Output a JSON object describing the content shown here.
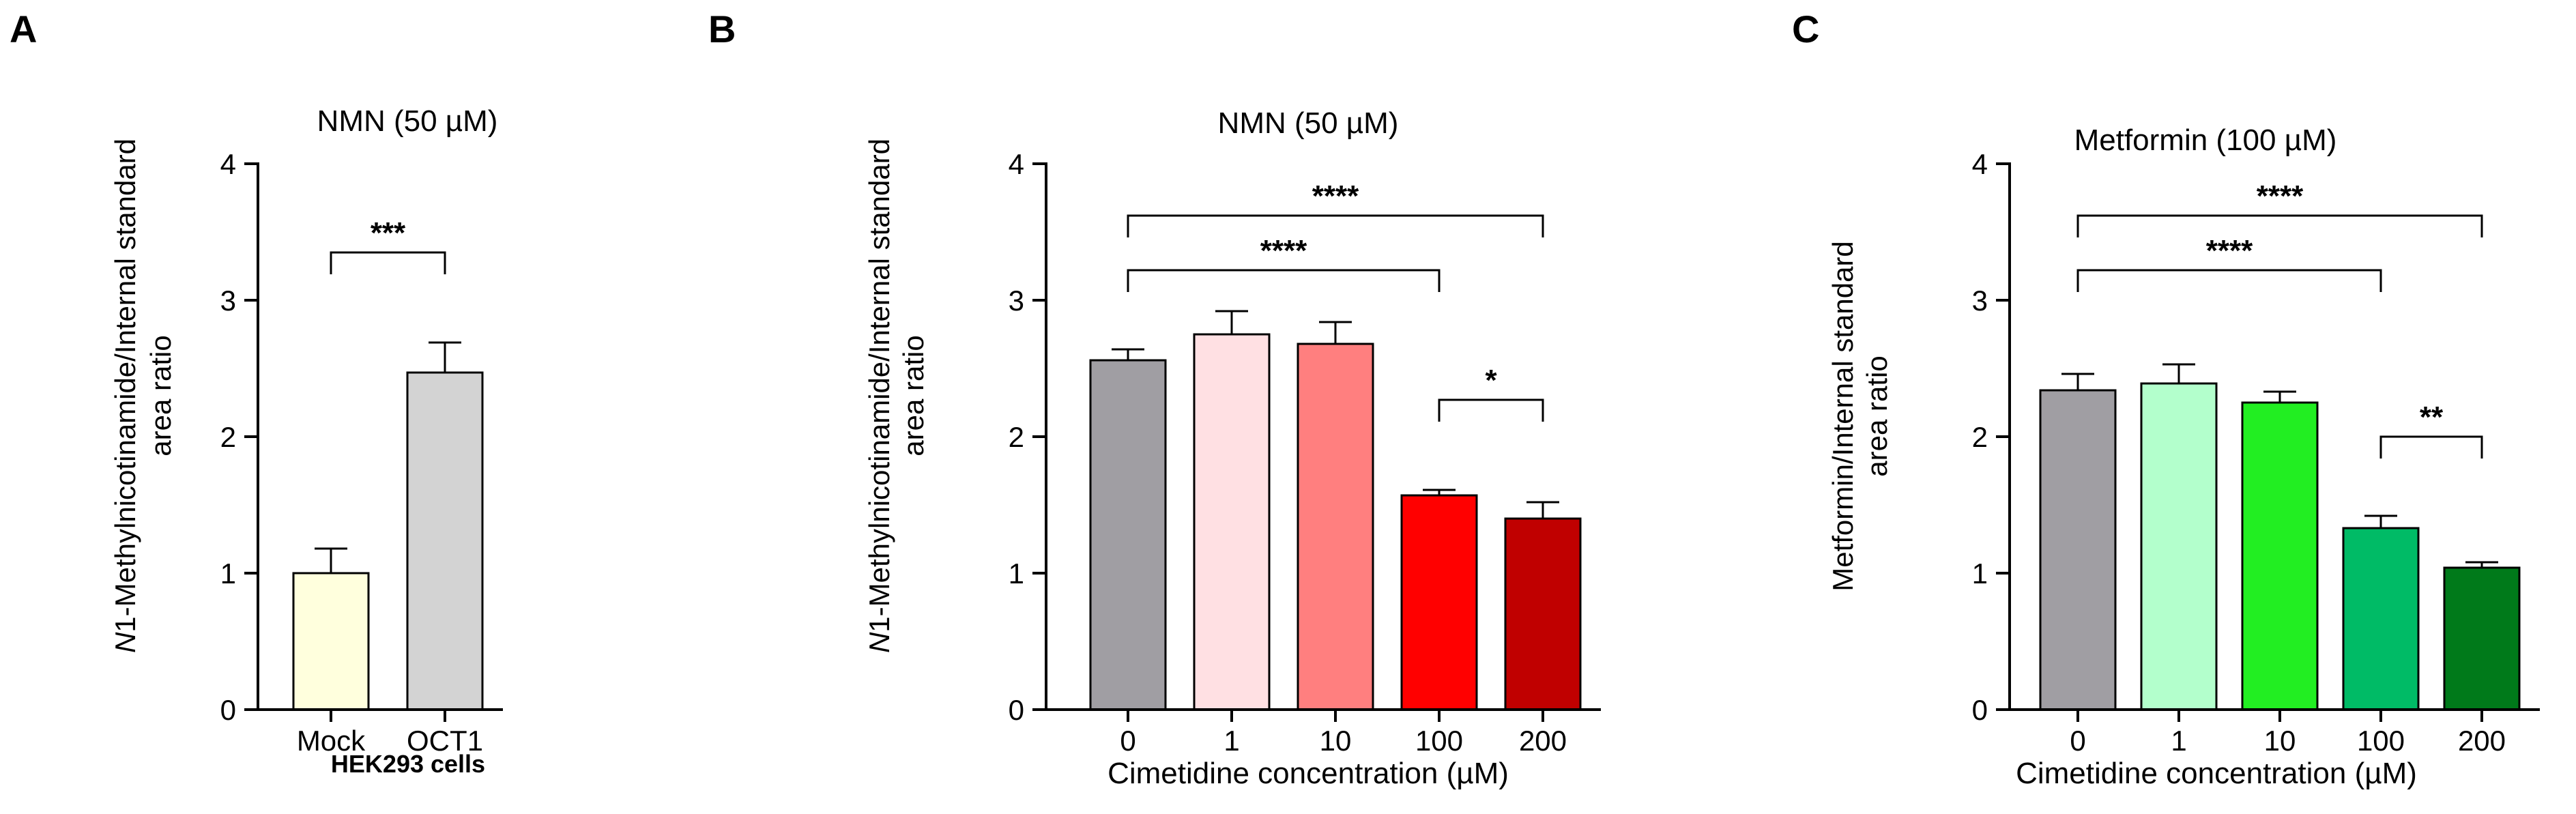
{
  "chart_data": [
    {
      "panel": "A",
      "type": "bar",
      "title": "NMN (50 µM)",
      "ylabel_italic": "N",
      "ylabel_line1": "1-Methylnicotinamide/Internal standard",
      "ylabel_line2": "area ratio",
      "xlabel": "HEK293 cells",
      "ylim": [
        0,
        4
      ],
      "yticks": [
        "0",
        "1",
        "2",
        "3",
        "4"
      ],
      "categories": [
        "Mock",
        "OCT1"
      ],
      "values": [
        1.0,
        2.47
      ],
      "errors": [
        0.18,
        0.22
      ],
      "colors": [
        "#ffffdd",
        "#d3d3d3"
      ],
      "brackets": [
        {
          "from": 0,
          "to": 1,
          "label": "***",
          "level": 3.35
        }
      ]
    },
    {
      "panel": "B",
      "type": "bar",
      "title": "NMN (50 µM)",
      "ylabel_italic": "N",
      "ylabel_line1": "1-Methylnicotinamide/Internal standard",
      "ylabel_line2": "area ratio",
      "xlabel": "Cimetidine concentration (µM)",
      "ylim": [
        0,
        4
      ],
      "yticks": [
        "0",
        "1",
        "2",
        "3",
        "4"
      ],
      "categories": [
        "0",
        "1",
        "10",
        "100",
        "200"
      ],
      "values": [
        2.56,
        2.75,
        2.68,
        1.57,
        1.4
      ],
      "errors": [
        0.08,
        0.17,
        0.16,
        0.04,
        0.12
      ],
      "colors": [
        "#a09ea3",
        "#ffe0e3",
        "#ff7f7f",
        "#ff0000",
        "#c00000"
      ],
      "brackets": [
        {
          "from": 0,
          "to": 4,
          "label": "****",
          "level": 3.62
        },
        {
          "from": 0,
          "to": 3,
          "label": "****",
          "level": 3.22
        },
        {
          "from": 3,
          "to": 4,
          "label": "*",
          "level": 2.27
        }
      ]
    },
    {
      "panel": "C",
      "type": "bar",
      "title": "Metformin (100 µM)",
      "ylabel_italic": "",
      "ylabel_line1": "Metformin/Internal standard",
      "ylabel_line2": "area ratio",
      "xlabel": "Cimetidine concentration (µM)",
      "ylim": [
        0,
        4
      ],
      "yticks": [
        "0",
        "1",
        "2",
        "3",
        "4"
      ],
      "categories": [
        "0",
        "1",
        "10",
        "100",
        "200"
      ],
      "values": [
        2.34,
        2.39,
        2.25,
        1.33,
        1.04
      ],
      "errors": [
        0.12,
        0.14,
        0.08,
        0.09,
        0.04
      ],
      "colors": [
        "#a09ea3",
        "#b3ffcc",
        "#22ee22",
        "#00bb66",
        "#007a1a"
      ],
      "brackets": [
        {
          "from": 0,
          "to": 4,
          "label": "****",
          "level": 3.62
        },
        {
          "from": 0,
          "to": 3,
          "label": "****",
          "level": 3.22
        },
        {
          "from": 3,
          "to": 4,
          "label": "**",
          "level": 2.0
        }
      ]
    }
  ]
}
